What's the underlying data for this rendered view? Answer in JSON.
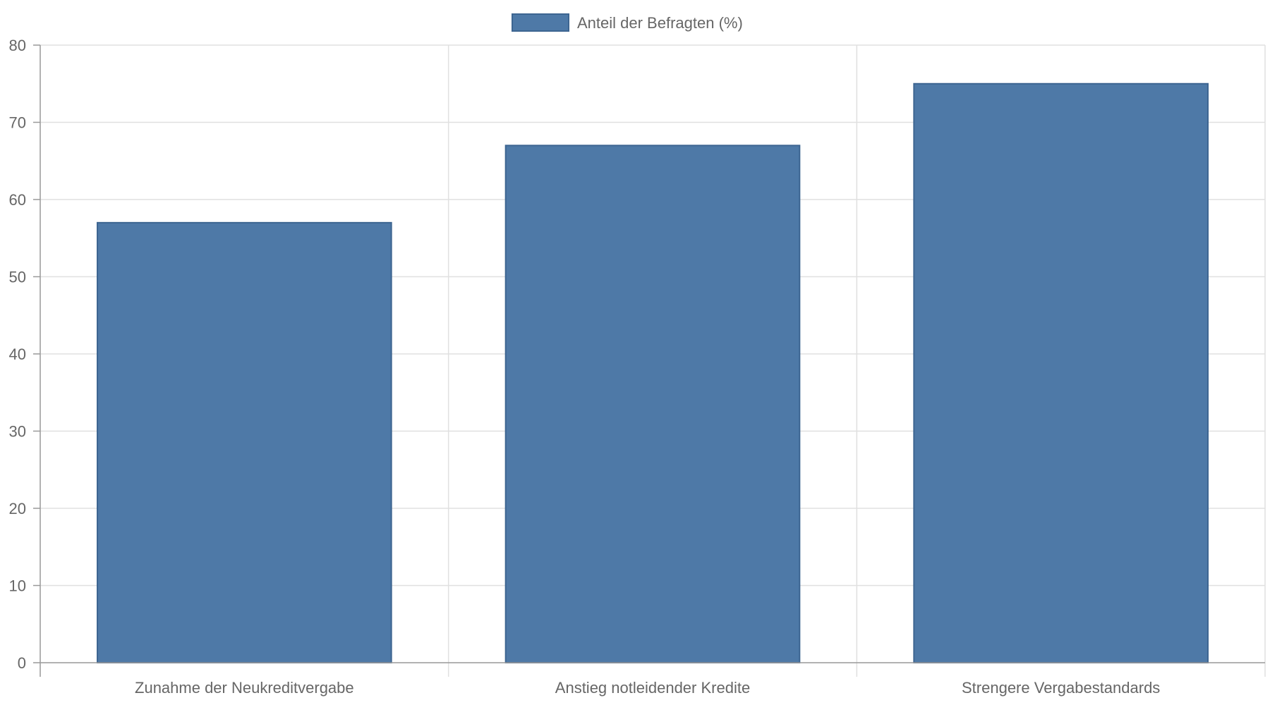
{
  "chart_data": {
    "type": "bar",
    "categories": [
      "Zunahme der Neukreditvergabe",
      "Anstieg notleidender Kredite",
      "Strengere Vergabestandards"
    ],
    "series": [
      {
        "name": "Anteil der Befragten (%)",
        "values": [
          57,
          67,
          75
        ]
      }
    ],
    "ylim": [
      0,
      80
    ],
    "yticks": [
      0,
      10,
      20,
      30,
      40,
      50,
      60,
      70,
      80
    ],
    "grid": true,
    "legend": "top-center",
    "colors": {
      "bar": "#4e79a7",
      "bar_border": "#3d6591",
      "grid": "#e0e0e0",
      "axis": "#999999",
      "text": "#666666"
    }
  }
}
